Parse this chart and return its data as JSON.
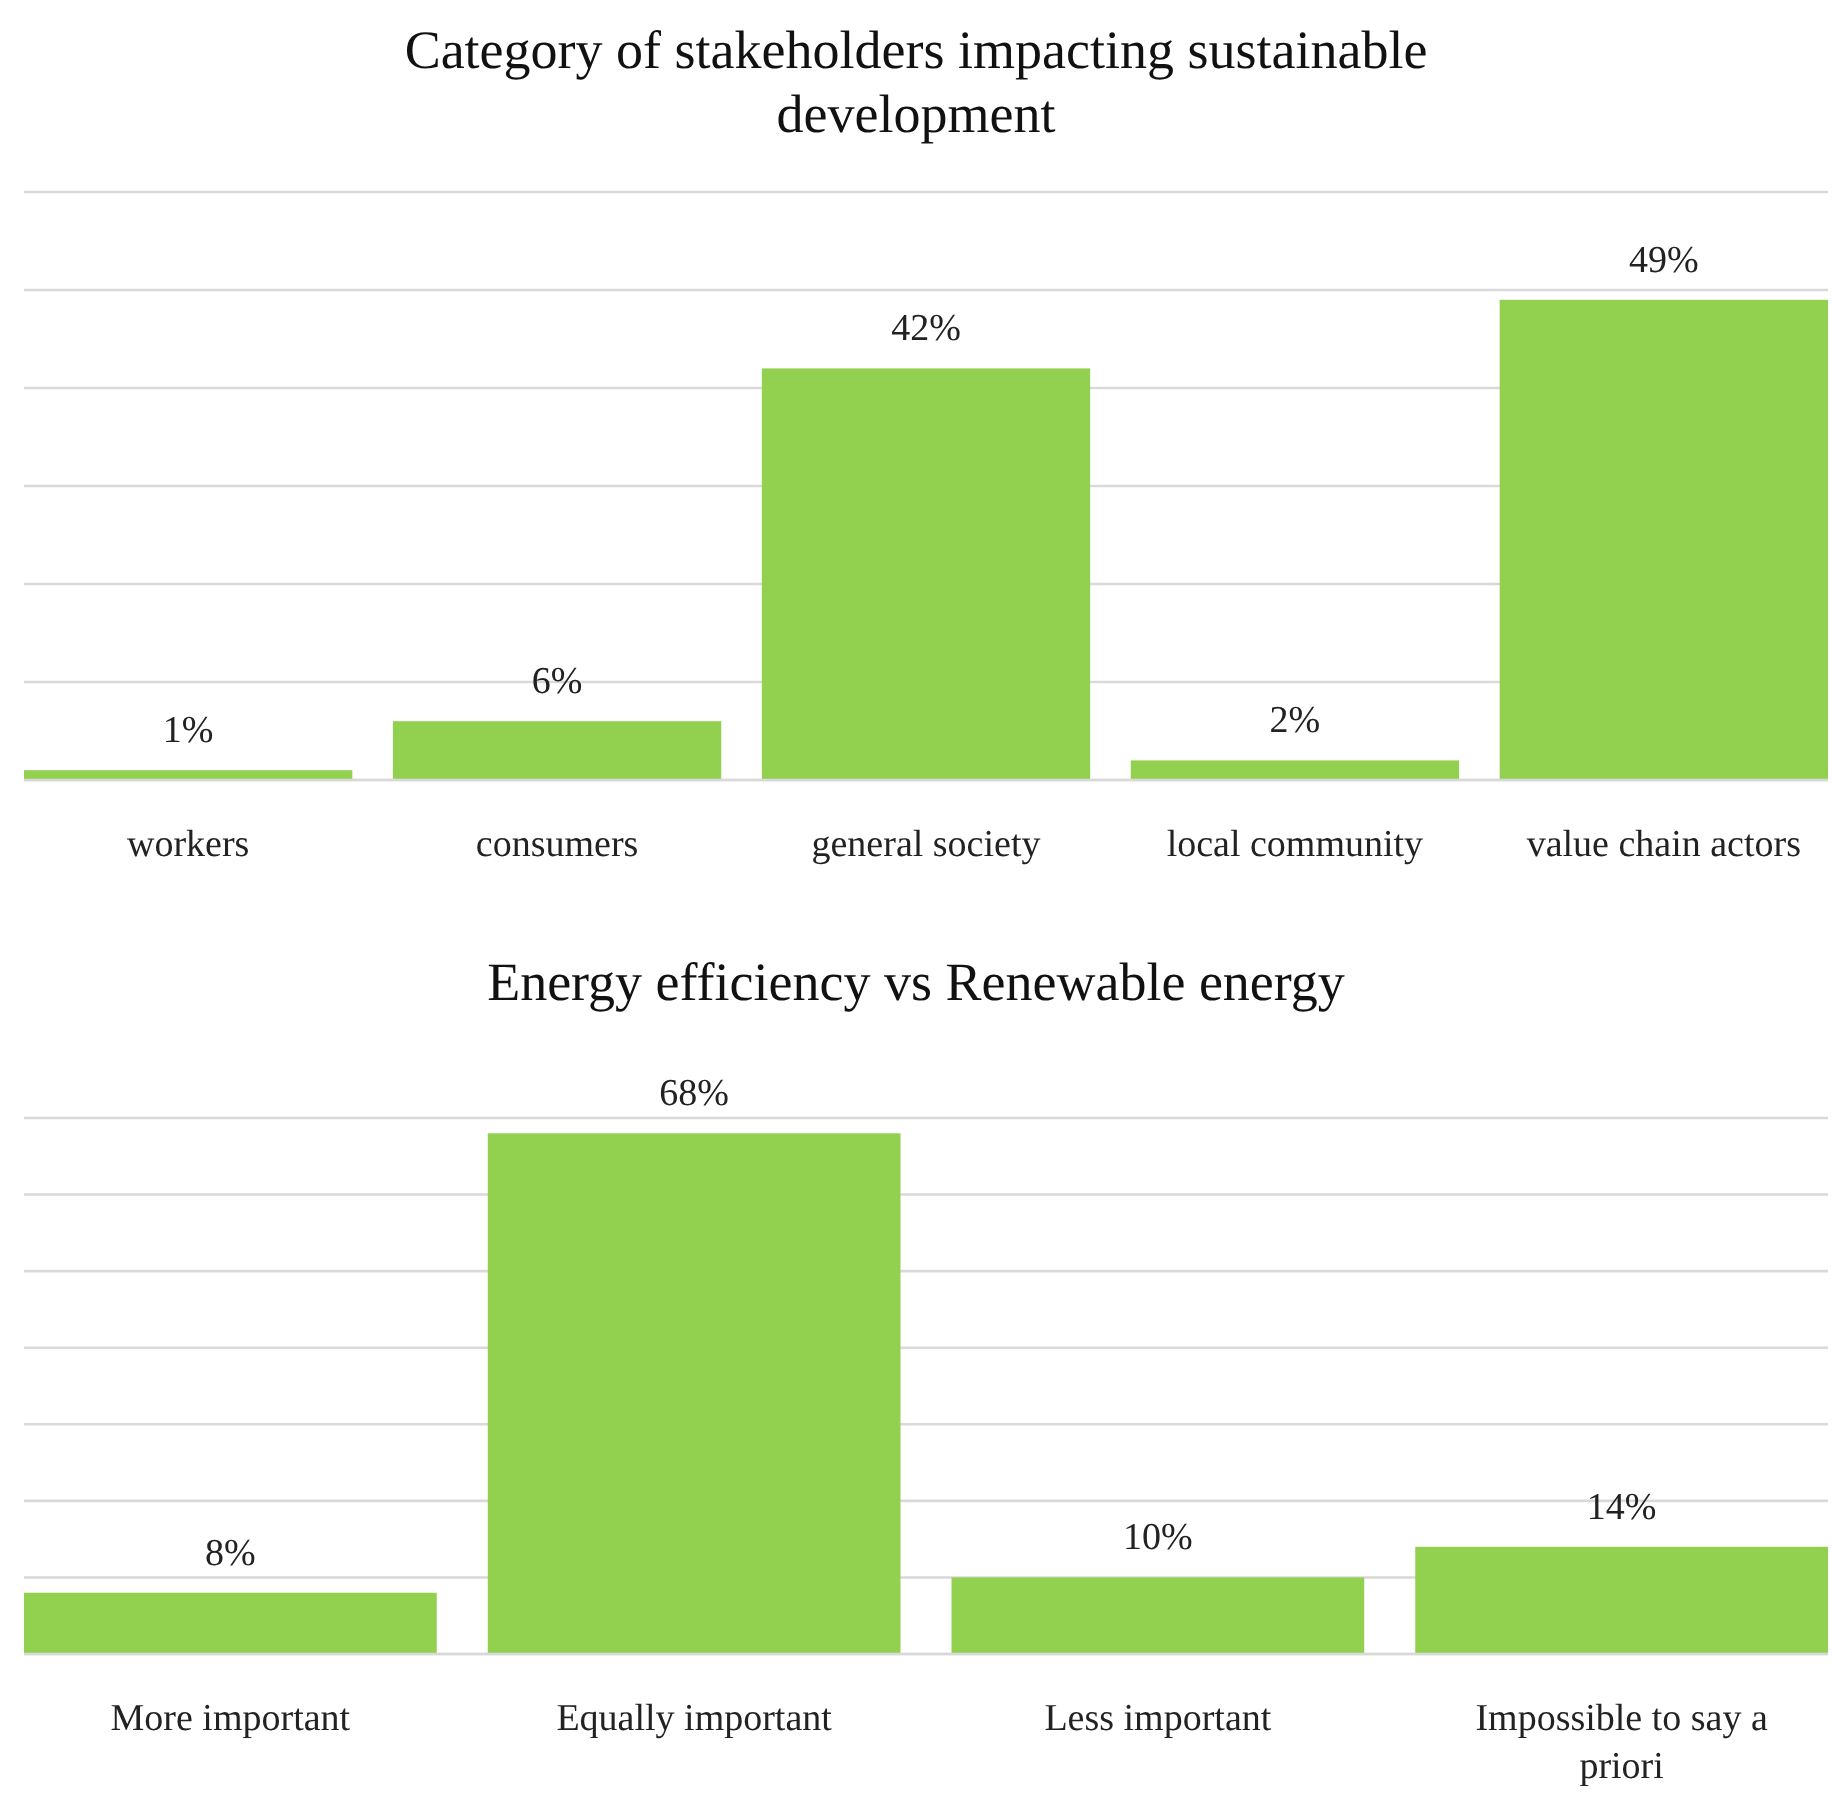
{
  "chart_data": [
    {
      "type": "bar",
      "title": "Category of stakeholders impacting sustainable development",
      "categories": [
        "workers",
        "consumers",
        "general society",
        "local community",
        "value chain actors"
      ],
      "values": [
        1,
        6,
        42,
        2,
        49
      ],
      "value_labels": [
        "1%",
        "6%",
        "42%",
        "2%",
        "49%"
      ],
      "color": "#92d050",
      "ylim": [
        0,
        60
      ],
      "yticks": [
        {
          "value": 0,
          "label": null
        },
        {
          "value": 10,
          "label": null
        },
        {
          "value": 20,
          "label": null
        },
        {
          "value": 30,
          "label": null
        },
        {
          "value": 40,
          "label": null
        },
        {
          "value": 50,
          "label": null
        },
        {
          "value": 60,
          "label": null
        }
      ],
      "grid": "y",
      "tick_labels": "x"
    },
    {
      "type": "bar",
      "title": "Energy efficiency vs Renewable energy",
      "categories": [
        "More important",
        "Equally important",
        "Less important",
        "Impossible to say a priori"
      ],
      "values": [
        8,
        68,
        10,
        14
      ],
      "value_labels": [
        "8%",
        "68%",
        "10%",
        "14%"
      ],
      "color": "#92d050",
      "ylim": [
        0,
        70
      ],
      "yticks": [
        {
          "value": 0,
          "label": null
        },
        {
          "value": 10,
          "label": null
        },
        {
          "value": 20,
          "label": null
        },
        {
          "value": 30,
          "label": null
        },
        {
          "value": 40,
          "label": null
        },
        {
          "value": 50,
          "label": null
        },
        {
          "value": 60,
          "label": null
        },
        {
          "value": 70,
          "label": null
        }
      ],
      "grid": "y",
      "tick_labels": "x"
    }
  ]
}
